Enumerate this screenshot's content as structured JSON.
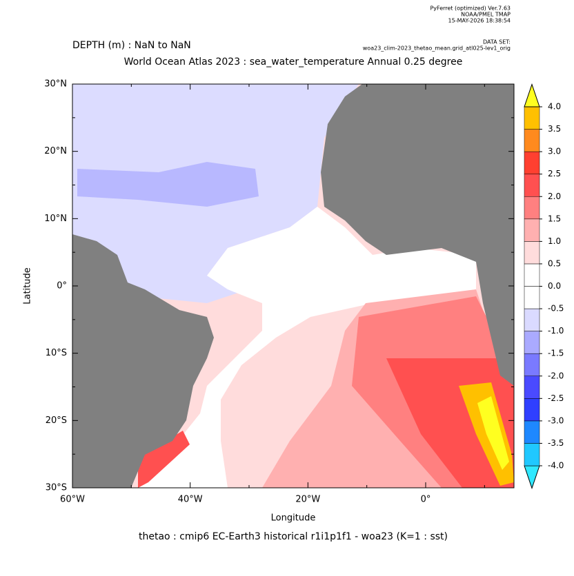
{
  "header": {
    "program": "PyFerret (optimized) Ver.7.63",
    "org": "NOAA/PMEL TMAP",
    "date": "15-MAY-2026 18:38:54",
    "dataset_label": "DATA SET:",
    "dataset": "woa23_clim-2023_thetao_mean.grid_atl025-lev1_orig"
  },
  "chart_data": {
    "type": "map",
    "subtitle": "DEPTH (m) : NaN to NaN",
    "title": "World Ocean Atlas 2023 : sea_water_temperature Annual  0.25 degree",
    "x_label": "Longitude",
    "y_label": "Latitude",
    "caption": "thetao : cmip6 EC-Earth3 historical r1i1p1f1 - woa23  (K=1 : sst)",
    "xlim": [
      -60,
      15
    ],
    "xticks": [
      {
        "value": -60,
        "label": "60°W"
      },
      {
        "value": -40,
        "label": "40°W"
      },
      {
        "value": -20,
        "label": "20°W"
      },
      {
        "value": 0,
        "label": "0°"
      }
    ],
    "xminorticks": [
      -50,
      -30,
      -10,
      10
    ],
    "ylim": [
      -30,
      30
    ],
    "yticks": [
      {
        "value": 30,
        "label": "30°N"
      },
      {
        "value": 20,
        "label": "20°N"
      },
      {
        "value": 10,
        "label": "10°N"
      },
      {
        "value": 0,
        "label": "0°"
      },
      {
        "value": -10,
        "label": "10°S"
      },
      {
        "value": -20,
        "label": "20°S"
      },
      {
        "value": -30,
        "label": "30°S"
      }
    ],
    "yminorticks": [
      25,
      15,
      5,
      -5,
      -15,
      -25
    ],
    "colorbar": {
      "levels": [
        {
          "value": -4,
          "label": "-4.0"
        },
        {
          "value": -3.5,
          "label": "-3.5"
        },
        {
          "value": -3,
          "label": "-3.0"
        },
        {
          "value": -2.5,
          "label": "-2.5"
        },
        {
          "value": -2,
          "label": "-2.0"
        },
        {
          "value": -1.5,
          "label": "-1.5"
        },
        {
          "value": -1,
          "label": "-1.0"
        },
        -0.5,
        {
          "value": 0,
          "label": "0.0"
        },
        0.5,
        {
          "value": 1,
          "label": "1.0"
        },
        1.5,
        {
          "value": 2,
          "label": "2.0"
        },
        2.5,
        {
          "value": 3,
          "label": "3.0"
        },
        3.5,
        {
          "value": 4,
          "label": "4.0"
        }
      ],
      "colors": [
        "#30e8ff",
        "#20c8ff",
        "#1e88ff",
        "#2f3fff",
        "#4a4aff",
        "#7a7aff",
        "#aaaaff",
        "#dadaff",
        "#ffffff",
        "#ffffff",
        "#ffdcdc",
        "#ffb0b0",
        "#ff8080",
        "#ff5050",
        "#ff4030",
        "#ff8a1e",
        "#ffc000",
        "#ffff20"
      ]
    }
  }
}
